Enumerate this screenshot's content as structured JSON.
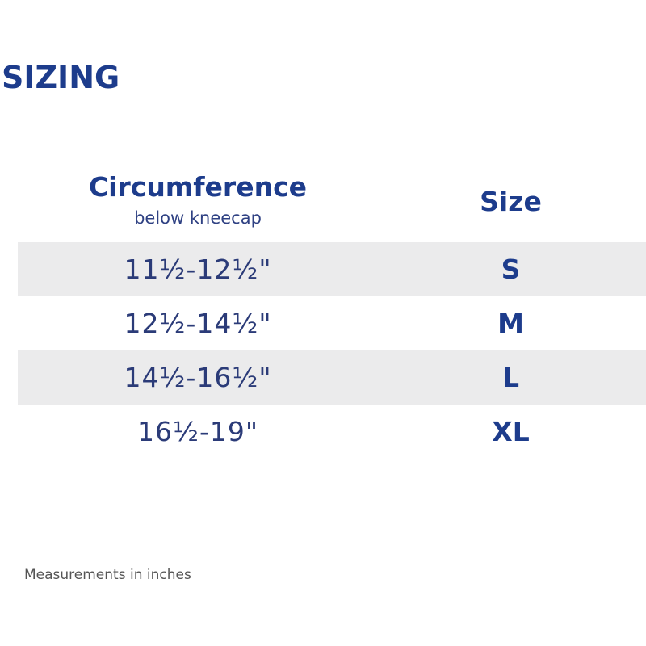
{
  "title": "SIZING",
  "table": {
    "header_circumference": "Circumference",
    "header_circumference_sub": "below kneecap",
    "header_size": "Size",
    "rows": [
      {
        "circumference": "11½-12½\"",
        "size": "S"
      },
      {
        "circumference": "12½-14½\"",
        "size": "M"
      },
      {
        "circumference": "14½-16½\"",
        "size": "L"
      },
      {
        "circumference": "16½-19\"",
        "size": "XL"
      }
    ]
  },
  "note": "Measurements in inches",
  "colors": {
    "brand_blue": "#1d3c8c",
    "row_shade": "#ebebec"
  }
}
